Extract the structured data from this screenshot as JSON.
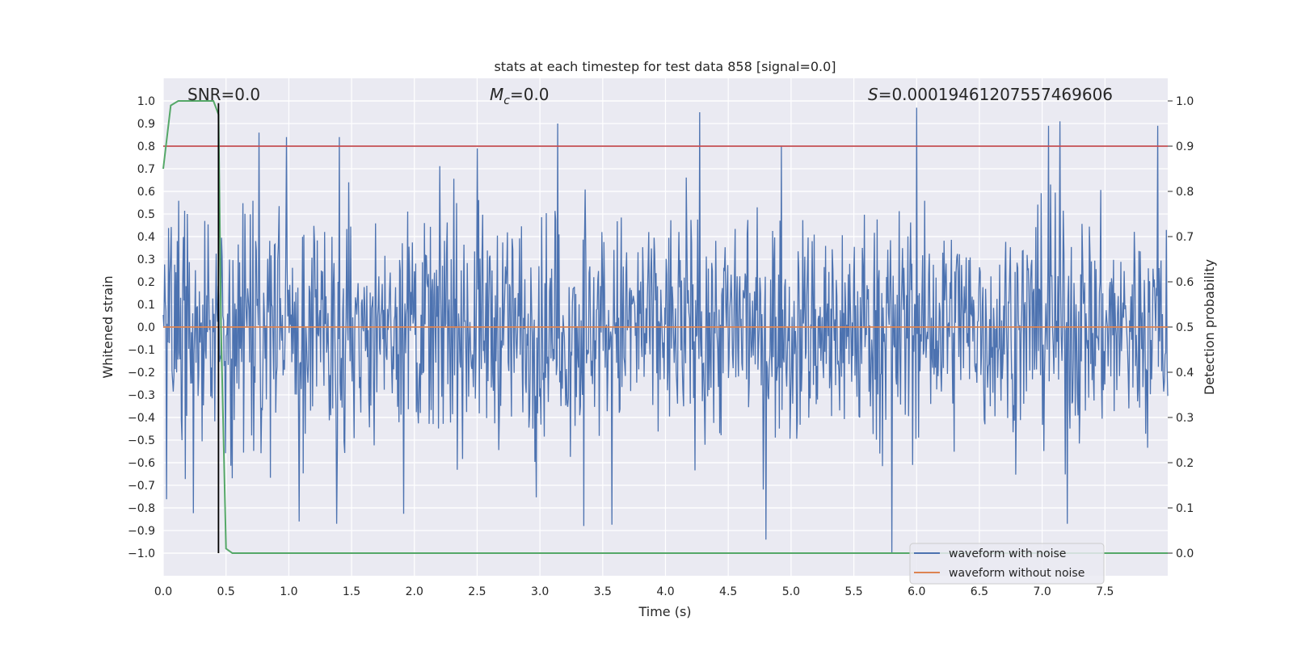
{
  "chart_data": {
    "type": "line",
    "title": "stats at each timestep for test data 858 [signal=0.0]",
    "xlabel": "Time (s)",
    "ylabel_left": "Whitened strain",
    "ylabel_right": "Detection probability",
    "xlim": [
      0.0,
      8.0
    ],
    "ylim_left": [
      -1.1,
      1.1
    ],
    "ylim_right": [
      -0.05,
      1.05
    ],
    "x_ticks": [
      "0.0",
      "0.5",
      "1.0",
      "1.5",
      "2.0",
      "2.5",
      "3.0",
      "3.5",
      "4.0",
      "4.5",
      "5.0",
      "5.5",
      "6.0",
      "6.5",
      "7.0",
      "7.5"
    ],
    "y_ticks_left": [
      "1.0",
      "0.9",
      "0.8",
      "0.7",
      "0.6",
      "0.5",
      "0.4",
      "0.3",
      "0.2",
      "0.1",
      "0.0",
      "−0.1",
      "−0.2",
      "−0.3",
      "−0.4",
      "−0.5",
      "−0.6",
      "−0.7",
      "−0.8",
      "−0.9",
      "−1.0"
    ],
    "y_ticks_right": [
      "1.0",
      "0.9",
      "0.8",
      "0.7",
      "0.6",
      "0.5",
      "0.4",
      "0.3",
      "0.2",
      "0.1",
      "0.0"
    ],
    "annotations": {
      "snr": "SNR=0.0",
      "mc": "=0.0",
      "mc_symbol": "M",
      "mc_sub": "c",
      "s": "=0.00019461207557469606",
      "s_symbol": "S"
    },
    "threshold_right": 0.9,
    "vertical_marker_x": 0.44,
    "series": [
      {
        "name": "waveform with noise",
        "axis": "left",
        "color": "#4c72b0",
        "envelope": "dense noise, typical |strain| 0.2-0.4, positive spikes up to 0.95 (x~4.27), 0.97 (x~6.0), negative spikes down to -1.0 (x~5.8)",
        "notable_spikes": [
          {
            "x": 0.98,
            "y": 0.84
          },
          {
            "x": 1.4,
            "y": 0.84
          },
          {
            "x": 2.5,
            "y": 0.79
          },
          {
            "x": 3.14,
            "y": 0.9
          },
          {
            "x": 4.27,
            "y": 0.95
          },
          {
            "x": 4.92,
            "y": 0.8
          },
          {
            "x": 6.0,
            "y": 0.97
          },
          {
            "x": 7.05,
            "y": 0.89
          },
          {
            "x": 7.14,
            "y": 0.91
          },
          {
            "x": 7.92,
            "y": 0.89
          },
          {
            "x": 1.08,
            "y": -0.86
          },
          {
            "x": 1.38,
            "y": -0.87
          },
          {
            "x": 3.35,
            "y": -0.88
          },
          {
            "x": 4.8,
            "y": -0.94
          },
          {
            "x": 5.8,
            "y": -1.0
          },
          {
            "x": 7.2,
            "y": -0.87
          }
        ]
      },
      {
        "name": "waveform without noise",
        "axis": "left",
        "color": "#dd8452",
        "x": [
          0.0,
          8.0
        ],
        "y": [
          0.0,
          0.0
        ]
      },
      {
        "name": "detection probability",
        "axis": "right",
        "color": "#55a868",
        "x": [
          0.0,
          0.06,
          0.12,
          0.2,
          0.3,
          0.4,
          0.44,
          0.46,
          0.5,
          0.55,
          1.0,
          8.0
        ],
        "y": [
          0.85,
          0.99,
          1.0,
          1.0,
          1.0,
          1.0,
          0.97,
          0.5,
          0.01,
          0.0,
          0.0,
          0.0
        ]
      }
    ],
    "legend": {
      "position": "lower-right",
      "entries": [
        {
          "label": "waveform with noise",
          "color": "#4c72b0"
        },
        {
          "label": "waveform without noise",
          "color": "#dd8452"
        }
      ]
    }
  }
}
